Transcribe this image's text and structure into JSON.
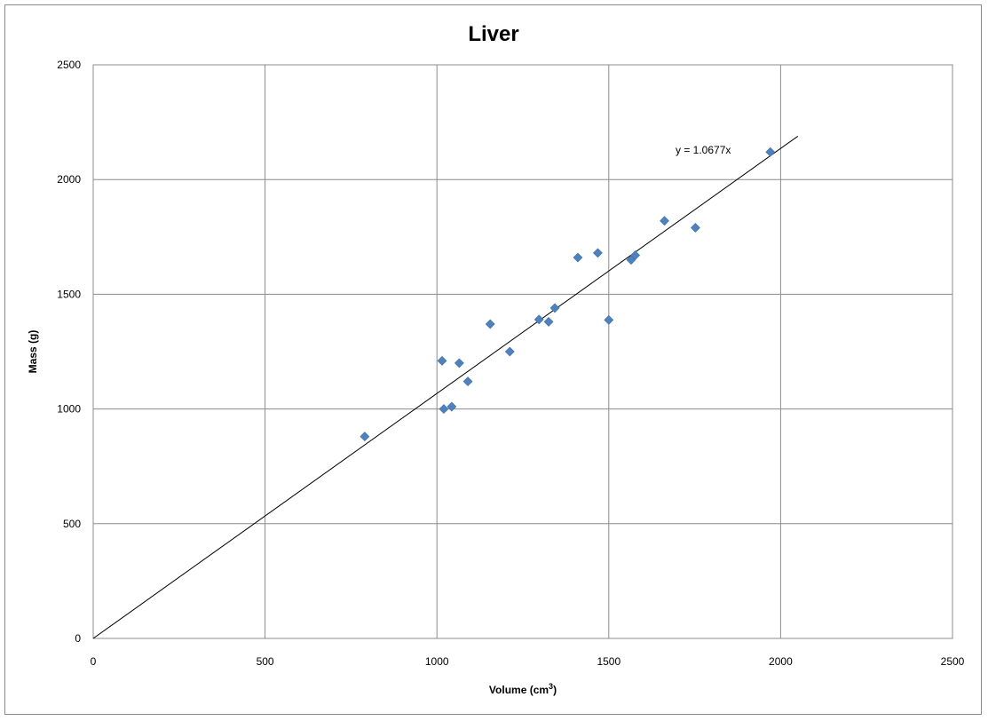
{
  "chart_data": {
    "type": "scatter",
    "title": "Liver",
    "xlabel": "Volume (cm",
    "xlabel_sup": "3",
    "xlabel_suffix": ")",
    "ylabel": "Mass (g)",
    "xlim": [
      0,
      2500
    ],
    "ylim": [
      0,
      2500
    ],
    "xticks": [
      0,
      500,
      1000,
      1500,
      2000,
      2500
    ],
    "yticks": [
      0,
      500,
      1000,
      1500,
      2000,
      2500
    ],
    "grid": true,
    "marker_color": "#4f81bd",
    "series": [
      {
        "marker": "diamond",
        "points": [
          {
            "x": 790,
            "y": 880
          },
          {
            "x": 1015,
            "y": 1210
          },
          {
            "x": 1020,
            "y": 1000
          },
          {
            "x": 1043,
            "y": 1010
          },
          {
            "x": 1065,
            "y": 1200
          },
          {
            "x": 1090,
            "y": 1120
          },
          {
            "x": 1155,
            "y": 1370
          },
          {
            "x": 1212,
            "y": 1250
          },
          {
            "x": 1297,
            "y": 1390
          },
          {
            "x": 1325,
            "y": 1380
          },
          {
            "x": 1343,
            "y": 1440
          },
          {
            "x": 1410,
            "y": 1660
          },
          {
            "x": 1468,
            "y": 1680
          },
          {
            "x": 1500,
            "y": 1388
          },
          {
            "x": 1565,
            "y": 1650
          },
          {
            "x": 1577,
            "y": 1670
          },
          {
            "x": 1662,
            "y": 1820
          },
          {
            "x": 1752,
            "y": 1790
          },
          {
            "x": 1970,
            "y": 2120
          }
        ]
      }
    ],
    "trendline": {
      "slope": 1.0677,
      "x_range": [
        0,
        2050
      ],
      "equation_label": "y = 1.0677x",
      "color": "#000000"
    }
  }
}
